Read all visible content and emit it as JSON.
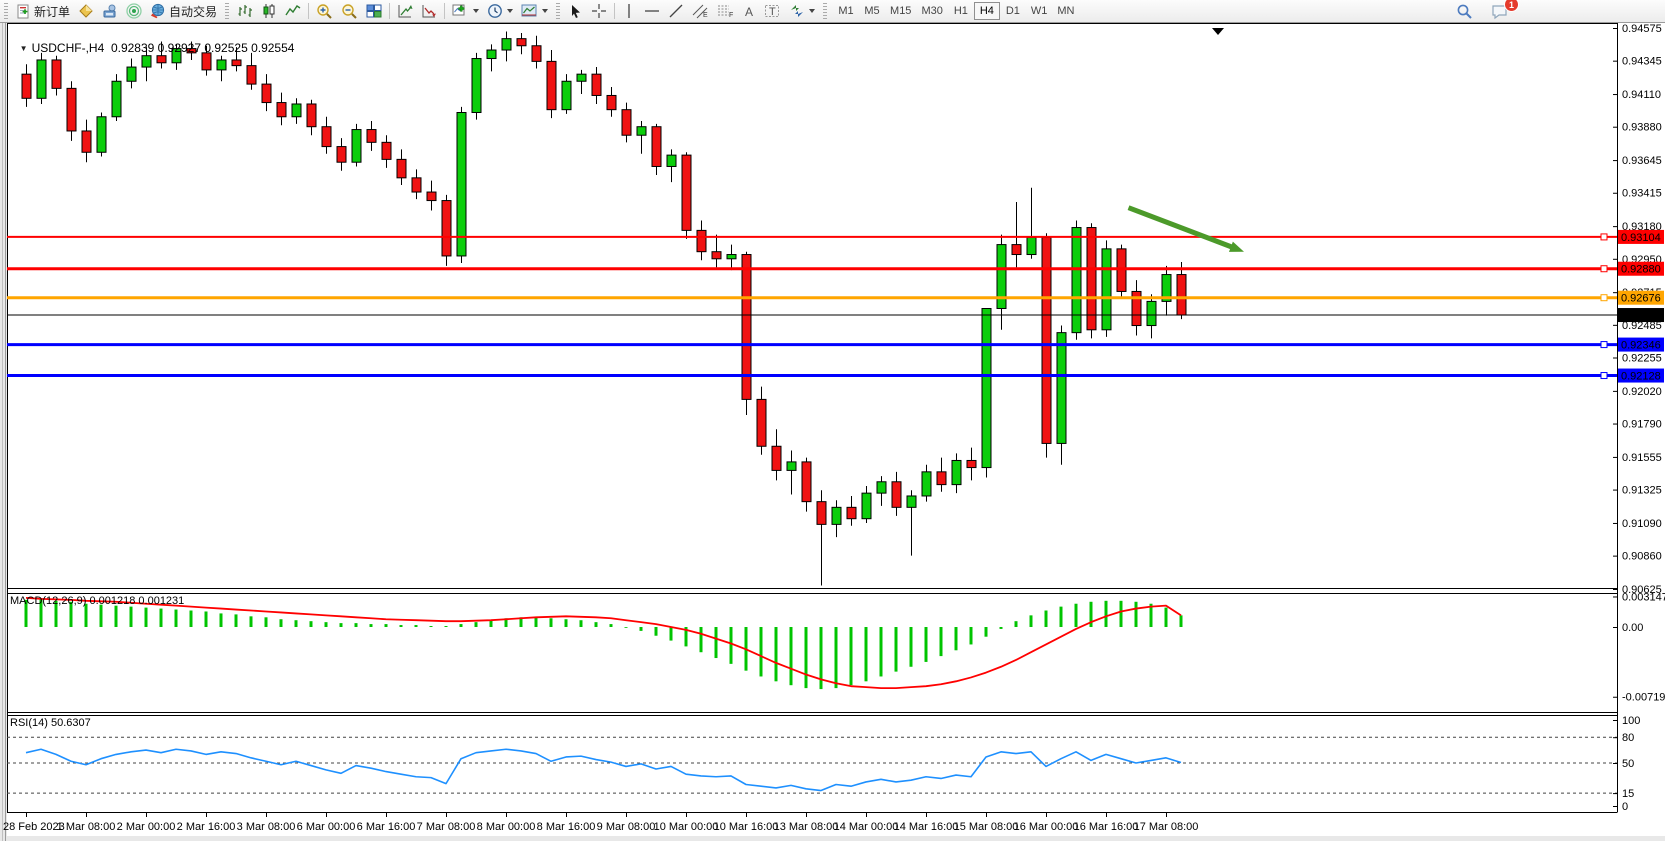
{
  "toolbar": {
    "new_order_label": "新订单",
    "autotrading_label": "自动交易",
    "timeframes": [
      "M1",
      "M5",
      "M15",
      "M30",
      "H1",
      "H4",
      "D1",
      "W1",
      "MN"
    ],
    "active_timeframe": "H4",
    "notification_badge": "1",
    "channel_tool_letter": "E",
    "fibo_tool_letter": "F",
    "text_tool_letter": "A",
    "label_tool_letter": "T"
  },
  "chart": {
    "dropdown_glyph": "▼",
    "symbol_title": "USDCHF-,H4",
    "ohlc_text": "0.92839 0.92927 0.92525 0.92554",
    "macd_label": "MACD(12,26,9) 0.001218 0.001231",
    "rsi_label": "RSI(14) 50.6307"
  },
  "chart_data": {
    "type": "candlestick",
    "symbol": "USDCHF",
    "period": "H4",
    "current_bar": {
      "open": 0.92839,
      "high": 0.92927,
      "low": 0.92525,
      "close": 0.92554
    },
    "price_axis": {
      "min": 0.90625,
      "max": 0.94575,
      "ticks": [
        "0.94575",
        "0.94345",
        "0.94110",
        "0.93880",
        "0.93645",
        "0.93415",
        "0.93180",
        "0.92950",
        "0.92715",
        "0.92485",
        "0.92255",
        "0.92020",
        "0.91790",
        "0.91555",
        "0.91325",
        "0.91090",
        "0.90860",
        "0.90625"
      ]
    },
    "time_axis_ticks": [
      "28 Feb 2023",
      "1 Mar 08:00",
      "2 Mar 00:00",
      "2 Mar 16:00",
      "3 Mar 08:00",
      "6 Mar 00:00",
      "6 Mar 16:00",
      "7 Mar 08:00",
      "8 Mar 00:00",
      "8 Mar 16:00",
      "9 Mar 08:00",
      "10 Mar 00:00",
      "10 Mar 16:00",
      "13 Mar 08:00",
      "14 Mar 00:00",
      "14 Mar 16:00",
      "15 Mar 08:00",
      "16 Mar 00:00",
      "16 Mar 16:00",
      "17 Mar 08:00"
    ],
    "candles": [
      [
        0.9425,
        0.9432,
        0.9402,
        0.9408
      ],
      [
        0.9408,
        0.944,
        0.9404,
        0.9435
      ],
      [
        0.9435,
        0.9438,
        0.941,
        0.9415
      ],
      [
        0.9415,
        0.942,
        0.9378,
        0.9385
      ],
      [
        0.9385,
        0.9393,
        0.9363,
        0.937
      ],
      [
        0.937,
        0.9398,
        0.9367,
        0.9395
      ],
      [
        0.9395,
        0.9425,
        0.9392,
        0.942
      ],
      [
        0.942,
        0.9436,
        0.9415,
        0.943
      ],
      [
        0.943,
        0.9444,
        0.942,
        0.9438
      ],
      [
        0.9438,
        0.9448,
        0.9429,
        0.9433
      ],
      [
        0.9433,
        0.9446,
        0.9428,
        0.9443
      ],
      [
        0.9443,
        0.9448,
        0.9435,
        0.944
      ],
      [
        0.944,
        0.9445,
        0.9424,
        0.9428
      ],
      [
        0.9428,
        0.9438,
        0.942,
        0.9435
      ],
      [
        0.9435,
        0.9444,
        0.9427,
        0.9431
      ],
      [
        0.9431,
        0.944,
        0.9414,
        0.9418
      ],
      [
        0.9418,
        0.9425,
        0.9399,
        0.9405
      ],
      [
        0.9405,
        0.9412,
        0.9389,
        0.9395
      ],
      [
        0.9395,
        0.9408,
        0.939,
        0.9404
      ],
      [
        0.9404,
        0.9407,
        0.9382,
        0.9388
      ],
      [
        0.9388,
        0.9395,
        0.9369,
        0.9374
      ],
      [
        0.9374,
        0.938,
        0.9357,
        0.9363
      ],
      [
        0.9363,
        0.939,
        0.936,
        0.9386
      ],
      [
        0.9386,
        0.9392,
        0.9371,
        0.9377
      ],
      [
        0.9377,
        0.9382,
        0.9359,
        0.9365
      ],
      [
        0.9365,
        0.9372,
        0.9347,
        0.9352
      ],
      [
        0.9352,
        0.9358,
        0.9337,
        0.9342
      ],
      [
        0.9342,
        0.935,
        0.9329,
        0.9336
      ],
      [
        0.9336,
        0.934,
        0.929,
        0.9297
      ],
      [
        0.9297,
        0.9402,
        0.9292,
        0.9398
      ],
      [
        0.9398,
        0.944,
        0.9393,
        0.9436
      ],
      [
        0.9436,
        0.9446,
        0.9427,
        0.9442
      ],
      [
        0.9442,
        0.9455,
        0.9434,
        0.945
      ],
      [
        0.945,
        0.9454,
        0.9439,
        0.9445
      ],
      [
        0.9445,
        0.9452,
        0.9429,
        0.9434
      ],
      [
        0.9434,
        0.9442,
        0.9394,
        0.94
      ],
      [
        0.94,
        0.9425,
        0.9397,
        0.942
      ],
      [
        0.942,
        0.9428,
        0.9411,
        0.9425
      ],
      [
        0.9425,
        0.943,
        0.9404,
        0.941
      ],
      [
        0.941,
        0.9416,
        0.9395,
        0.94
      ],
      [
        0.94,
        0.9405,
        0.9377,
        0.9382
      ],
      [
        0.9382,
        0.9392,
        0.9369,
        0.9388
      ],
      [
        0.9388,
        0.939,
        0.9354,
        0.936
      ],
      [
        0.936,
        0.9372,
        0.9349,
        0.9368
      ],
      [
        0.9368,
        0.937,
        0.9309,
        0.9315
      ],
      [
        0.9315,
        0.9322,
        0.9294,
        0.93
      ],
      [
        0.93,
        0.9312,
        0.9289,
        0.9295
      ],
      [
        0.9295,
        0.9305,
        0.9287,
        0.9298
      ],
      [
        0.9298,
        0.93,
        0.9185,
        0.9196
      ],
      [
        0.9196,
        0.9205,
        0.9157,
        0.9163
      ],
      [
        0.9163,
        0.9175,
        0.9139,
        0.9146
      ],
      [
        0.9146,
        0.916,
        0.9129,
        0.9152
      ],
      [
        0.9152,
        0.9155,
        0.9117,
        0.9124
      ],
      [
        0.9124,
        0.9132,
        0.9065,
        0.9108
      ],
      [
        0.9108,
        0.9125,
        0.9099,
        0.912
      ],
      [
        0.912,
        0.9128,
        0.9107,
        0.9112
      ],
      [
        0.9112,
        0.9135,
        0.9109,
        0.913
      ],
      [
        0.913,
        0.9142,
        0.9121,
        0.9138
      ],
      [
        0.9138,
        0.9145,
        0.9114,
        0.912
      ],
      [
        0.912,
        0.9132,
        0.9086,
        0.9128
      ],
      [
        0.9128,
        0.915,
        0.9124,
        0.9145
      ],
      [
        0.9145,
        0.9155,
        0.9131,
        0.9136
      ],
      [
        0.9136,
        0.9158,
        0.913,
        0.9153
      ],
      [
        0.9153,
        0.9162,
        0.9139,
        0.9148
      ],
      [
        0.9148,
        0.9258,
        0.9141,
        0.926
      ],
      [
        0.926,
        0.9312,
        0.9245,
        0.9305
      ],
      [
        0.9305,
        0.9335,
        0.9289,
        0.9298
      ],
      [
        0.9298,
        0.9345,
        0.9295,
        0.931
      ],
      [
        0.931,
        0.9313,
        0.9155,
        0.9165
      ],
      [
        0.9165,
        0.9248,
        0.915,
        0.9243
      ],
      [
        0.9243,
        0.9322,
        0.9238,
        0.9317
      ],
      [
        0.9317,
        0.932,
        0.9239,
        0.9245
      ],
      [
        0.9245,
        0.9308,
        0.924,
        0.9302
      ],
      [
        0.9302,
        0.9305,
        0.9267,
        0.9272
      ],
      [
        0.9272,
        0.928,
        0.9241,
        0.9248
      ],
      [
        0.9248,
        0.927,
        0.9239,
        0.9265
      ],
      [
        0.9265,
        0.929,
        0.9255,
        0.92839
      ],
      [
        0.92839,
        0.92927,
        0.92525,
        0.92554
      ]
    ],
    "hlines": [
      {
        "price": 0.93104,
        "label": "0.93104",
        "color": "#FF0000",
        "width": 2,
        "handle": true
      },
      {
        "price": 0.9288,
        "label": "0.92880",
        "color": "#FF0000",
        "width": 3,
        "handle": true
      },
      {
        "price": 0.92676,
        "label": "0.92676",
        "color": "#FFA500",
        "width": 3,
        "handle": true
      },
      {
        "price": 0.92554,
        "label": "0.92554",
        "color": "#000000",
        "width": 1,
        "handle": false
      },
      {
        "price": 0.92346,
        "label": "0.92346",
        "color": "#0000FF",
        "width": 3,
        "handle": true
      },
      {
        "price": 0.92128,
        "label": "0.92128",
        "color": "#0000FF",
        "width": 3,
        "handle": true
      }
    ],
    "trend_arrow": {
      "color": "#4C9A2A",
      "from": {
        "bar": 73.5,
        "price": 0.9331
      },
      "to": {
        "bar": 81.2,
        "price": 0.93
      }
    },
    "macd": {
      "label": "MACD(12,26,9)",
      "value": 0.001218,
      "signal_value": 0.001231,
      "axis_ticks": [
        "0.003147",
        "0.00",
        "-0.00719"
      ],
      "axis_tick_values": [
        0.003147,
        0,
        -0.00719
      ],
      "colors": {
        "hist": "#00C400",
        "signal": "#FF0000"
      },
      "hist": [
        0.0028,
        0.0029,
        0.0027,
        0.0026,
        0.0024,
        0.0023,
        0.0022,
        0.0021,
        0.002,
        0.0019,
        0.0018,
        0.0017,
        0.0016,
        0.0014,
        0.0013,
        0.0011,
        0.001,
        0.0008,
        0.0007,
        0.0006,
        0.0005,
        0.0004,
        0.0004,
        0.0003,
        0.0003,
        0.0002,
        0.0002,
        0.0001,
        0.0001,
        0.0003,
        0.0005,
        0.0007,
        0.0009,
        0.001,
        0.001,
        0.0009,
        0.0008,
        0.0007,
        0.0005,
        0.0003,
        0.0,
        -0.0004,
        -0.0009,
        -0.0014,
        -0.002,
        -0.0026,
        -0.0032,
        -0.0038,
        -0.0045,
        -0.0051,
        -0.0056,
        -0.006,
        -0.0063,
        -0.0064,
        -0.0063,
        -0.006,
        -0.0056,
        -0.0051,
        -0.0046,
        -0.0041,
        -0.0036,
        -0.003,
        -0.0024,
        -0.0018,
        -0.001,
        -0.0002,
        0.0006,
        0.0012,
        0.0017,
        0.0021,
        0.0024,
        0.0026,
        0.0027,
        0.0027,
        0.0026,
        0.0024,
        0.002,
        0.0012
      ],
      "signal": [
        0.003,
        0.0029,
        0.00285,
        0.0028,
        0.0027,
        0.00265,
        0.0026,
        0.0025,
        0.0024,
        0.0023,
        0.0022,
        0.0021,
        0.002,
        0.0019,
        0.0018,
        0.0017,
        0.0016,
        0.0015,
        0.0014,
        0.0013,
        0.0012,
        0.0011,
        0.001,
        0.0009,
        0.0008,
        0.00075,
        0.0007,
        0.00065,
        0.0006,
        0.0006,
        0.00065,
        0.0007,
        0.0008,
        0.0009,
        0.001,
        0.00105,
        0.0011,
        0.00105,
        0.001,
        0.0009,
        0.0007,
        0.0005,
        0.0003,
        0.0,
        -0.0003,
        -0.0007,
        -0.0012,
        -0.0017,
        -0.0023,
        -0.003,
        -0.0037,
        -0.0043,
        -0.0049,
        -0.0054,
        -0.0058,
        -0.0061,
        -0.0062,
        -0.0063,
        -0.0063,
        -0.0062,
        -0.0061,
        -0.0059,
        -0.0056,
        -0.0052,
        -0.0047,
        -0.0041,
        -0.0034,
        -0.0026,
        -0.0018,
        -0.001,
        -0.0002,
        0.0005,
        0.0011,
        0.0016,
        0.0019,
        0.0021,
        0.0022,
        0.0012
      ]
    },
    "rsi": {
      "label": "RSI(14)",
      "value": 50.6307,
      "axis_ticks": [
        "100",
        "80",
        "50",
        "15",
        "0"
      ],
      "axis_tick_values": [
        100,
        80,
        50,
        15,
        0
      ],
      "levels": [
        80,
        50,
        15
      ],
      "color": "#1E90FF",
      "values": [
        62,
        66,
        60,
        52,
        48,
        55,
        60,
        63,
        65,
        62,
        66,
        64,
        60,
        63,
        61,
        56,
        52,
        48,
        52,
        47,
        42,
        38,
        47,
        44,
        40,
        37,
        34,
        33,
        26,
        55,
        62,
        64,
        66,
        64,
        61,
        52,
        57,
        58,
        54,
        51,
        46,
        49,
        43,
        46,
        37,
        35,
        34,
        35,
        25,
        23,
        21,
        24,
        20,
        18,
        25,
        23,
        28,
        31,
        28,
        30,
        34,
        32,
        36,
        34,
        57,
        63,
        61,
        63,
        46,
        55,
        63,
        53,
        60,
        55,
        50,
        53,
        56,
        50.6
      ]
    },
    "colors": {
      "bull": "#0CCE0C",
      "bear": "#F01212",
      "outline": "#000000",
      "background": "#FFFFFF"
    }
  }
}
